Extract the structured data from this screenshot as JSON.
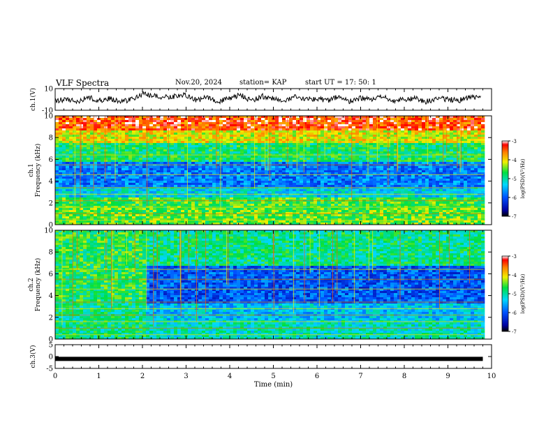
{
  "header": {
    "title": "VLF Spectra",
    "date": "Nov.20, 2024",
    "station": "station= KAP",
    "start": "start UT = 17: 50: 1"
  },
  "chart_data": [
    {
      "type": "line",
      "panel": "ch1-waveform",
      "ylabel": "ch.1(V)",
      "ylim": [
        -10,
        10
      ],
      "yticks": [
        "10",
        "-10"
      ],
      "xlim": [
        0,
        10
      ],
      "series": [
        {
          "x": [
            0,
            0.25,
            0.5,
            0.75,
            1,
            1.25,
            1.5,
            1.75,
            2,
            2.25,
            2.5,
            2.75,
            3,
            3.25,
            3.5,
            3.75,
            4,
            4.25,
            4.5,
            4.75,
            5,
            5.25,
            5.5,
            5.75,
            6,
            6.25,
            6.5,
            6.75,
            7,
            7.25,
            7.5,
            7.75,
            8,
            8.25,
            8.5,
            8.75,
            9,
            9.25,
            9.5,
            9.75
          ],
          "values": [
            -1,
            0,
            -2,
            2,
            -1,
            1,
            -2,
            0,
            5,
            3,
            2,
            3,
            4,
            -1,
            2,
            -2,
            1,
            4,
            -1,
            3,
            1,
            -2,
            2,
            0,
            1,
            -1,
            3,
            -2,
            1,
            0,
            2,
            -1,
            0,
            1,
            -2,
            1,
            0,
            -1,
            2,
            1
          ]
        }
      ]
    },
    {
      "type": "heatmap",
      "panel": "ch1-spectrogram",
      "ylabel": "ch.1 Frequency (kHz)",
      "ylim": [
        0,
        10
      ],
      "yticks": [
        "0",
        "2",
        "4",
        "6",
        "8",
        "10"
      ],
      "xlim": [
        0,
        10
      ],
      "colorbar": {
        "label": "log(PSD)(V²/Hz)",
        "ticks": [
          "-3",
          "-4",
          "-5",
          "-6",
          "-7"
        ],
        "range": [
          -7,
          -3
        ]
      },
      "bands": [
        {
          "from": 0,
          "to": 1.5,
          "value": -4.5
        },
        {
          "from": 1.5,
          "to": 2.5,
          "value": -4.6
        },
        {
          "from": 2.5,
          "to": 3.5,
          "value": -5.3
        },
        {
          "from": 3.5,
          "to": 5.8,
          "value": -5.8
        },
        {
          "from": 5.8,
          "to": 7.5,
          "value": -4.8
        },
        {
          "from": 7.5,
          "to": 8.7,
          "value": -4.1
        },
        {
          "from": 8.7,
          "to": 10,
          "value": -3.4
        }
      ]
    },
    {
      "type": "heatmap",
      "panel": "ch2-spectrogram",
      "ylabel": "ch.2 Frequency (kHz)",
      "ylim": [
        0,
        10
      ],
      "yticks": [
        "0",
        "2",
        "4",
        "6",
        "8",
        "10"
      ],
      "xlim": [
        0,
        10
      ],
      "colorbar": {
        "label": "log(PSD)(V²/Hz)",
        "ticks": [
          "-3",
          "-4",
          "-5",
          "-6",
          "-7"
        ],
        "range": [
          -7,
          -3
        ]
      },
      "change_time_min": 2.1,
      "bands_before": [
        {
          "from": 0,
          "to": 3.5,
          "value": -4.9
        },
        {
          "from": 3.5,
          "to": 10,
          "value": -4.7
        }
      ],
      "bands_after": [
        {
          "from": 0,
          "to": 1.8,
          "value": -5.1
        },
        {
          "from": 1.8,
          "to": 3.2,
          "value": -5.4
        },
        {
          "from": 3.2,
          "to": 6.8,
          "value": -6.0
        },
        {
          "from": 6.8,
          "to": 10,
          "value": -4.9
        }
      ]
    },
    {
      "type": "line",
      "panel": "ch3-waveform",
      "ylabel": "ch.3(V)",
      "ylim": [
        -5,
        5
      ],
      "yticks": [
        "5",
        "0",
        "-5"
      ],
      "xlim": [
        0,
        10
      ],
      "xlabel": "Time (min)",
      "xticks": [
        "0",
        "1",
        "2",
        "3",
        "4",
        "5",
        "6",
        "7",
        "8",
        "9",
        "10"
      ],
      "series": [
        {
          "x": [
            0,
            9.8
          ],
          "values": [
            -1,
            -1
          ]
        }
      ]
    }
  ]
}
